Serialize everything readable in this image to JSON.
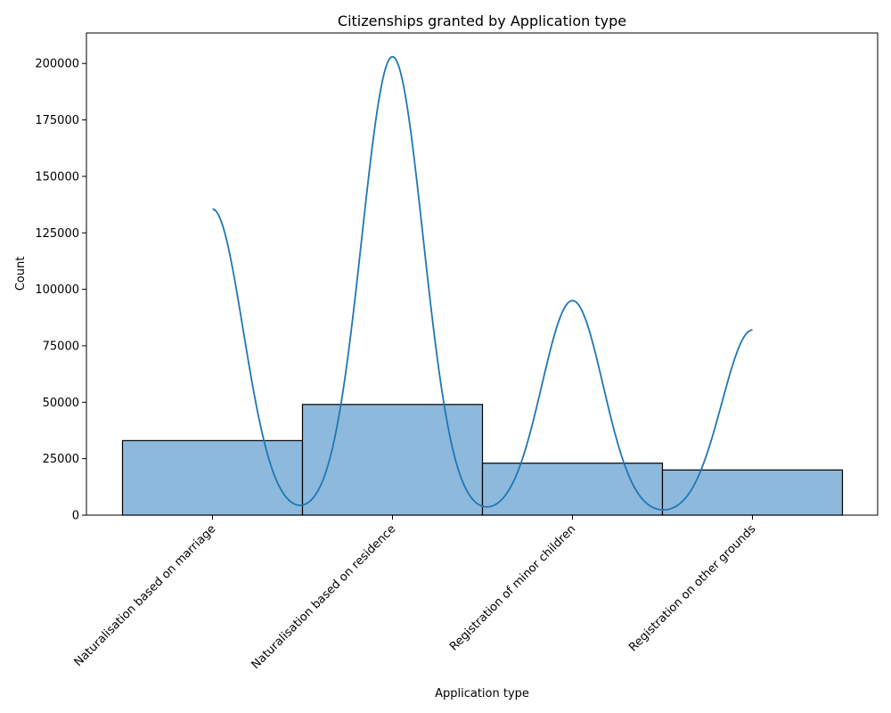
{
  "chart_data": {
    "type": "bar",
    "title": "Citizenships granted by Application type",
    "xlabel": "Application type",
    "ylabel": "Count",
    "categories": [
      "Naturalisation based on marriage",
      "Naturalisation based on residence",
      "Registration of minor children",
      "Registration on other grounds"
    ],
    "values": [
      33000,
      49000,
      23000,
      20000
    ],
    "kde_peaks": [
      135500,
      203000,
      95000,
      82000
    ],
    "ylim": [
      0,
      213500
    ],
    "yticks": [
      0,
      25000,
      50000,
      75000,
      100000,
      125000,
      150000,
      175000,
      200000
    ],
    "grid": false,
    "legend": "none",
    "colors": {
      "bar_fill": "#8db9dc",
      "bar_edge": "#000000",
      "kde_line": "#1f77b4"
    }
  }
}
